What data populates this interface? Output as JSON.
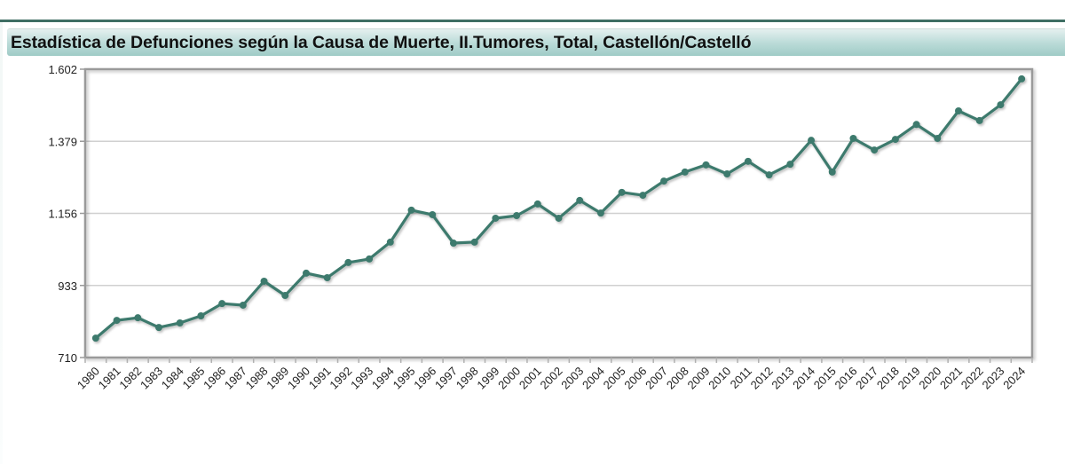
{
  "header": {
    "title": "Estadística de Defunciones según la Causa de Muerte, II.Tumores, Total, Castellón/Castelló"
  },
  "colors": {
    "line": "#3d7a6d",
    "title_bar_top": "#e4f0ef",
    "title_bar_bottom": "#9fcbc6",
    "top_rule": "#3f6e63",
    "gridline": "#d0d0d0",
    "frame": "#9a9a9a"
  },
  "chart_data": {
    "type": "line",
    "title": "Estadística de Defunciones según la Causa de Muerte, II.Tumores, Total, Castellón/Castelló",
    "xlabel": "",
    "ylabel": "",
    "ylim": [
      710,
      1602
    ],
    "yticks": [
      "710",
      "933",
      "1.156",
      "1.379",
      "1.602"
    ],
    "ytick_values": [
      710,
      933,
      1156,
      1379,
      1602
    ],
    "grid": true,
    "legend": null,
    "categories": [
      "1980",
      "1981",
      "1982",
      "1983",
      "1984",
      "1985",
      "1986",
      "1987",
      "1988",
      "1989",
      "1990",
      "1991",
      "1992",
      "1993",
      "1994",
      "1995",
      "1996",
      "1997",
      "1998",
      "1999",
      "2000",
      "2001",
      "2002",
      "2003",
      "2004",
      "2005",
      "2006",
      "2007",
      "2008",
      "2009",
      "2010",
      "2011",
      "2012",
      "2013",
      "2014",
      "2015",
      "2016",
      "2017",
      "2018",
      "2019",
      "2020",
      "2021",
      "2022",
      "2023",
      "2024"
    ],
    "series": [
      {
        "name": "Total",
        "values": [
          770,
          825,
          833,
          803,
          817,
          839,
          877,
          872,
          946,
          902,
          971,
          957,
          1004,
          1015,
          1067,
          1166,
          1152,
          1064,
          1067,
          1141,
          1149,
          1185,
          1141,
          1196,
          1157,
          1221,
          1212,
          1256,
          1284,
          1306,
          1278,
          1317,
          1275,
          1308,
          1382,
          1284,
          1388,
          1352,
          1385,
          1431,
          1388,
          1473,
          1443,
          1492,
          1572
        ]
      }
    ]
  }
}
